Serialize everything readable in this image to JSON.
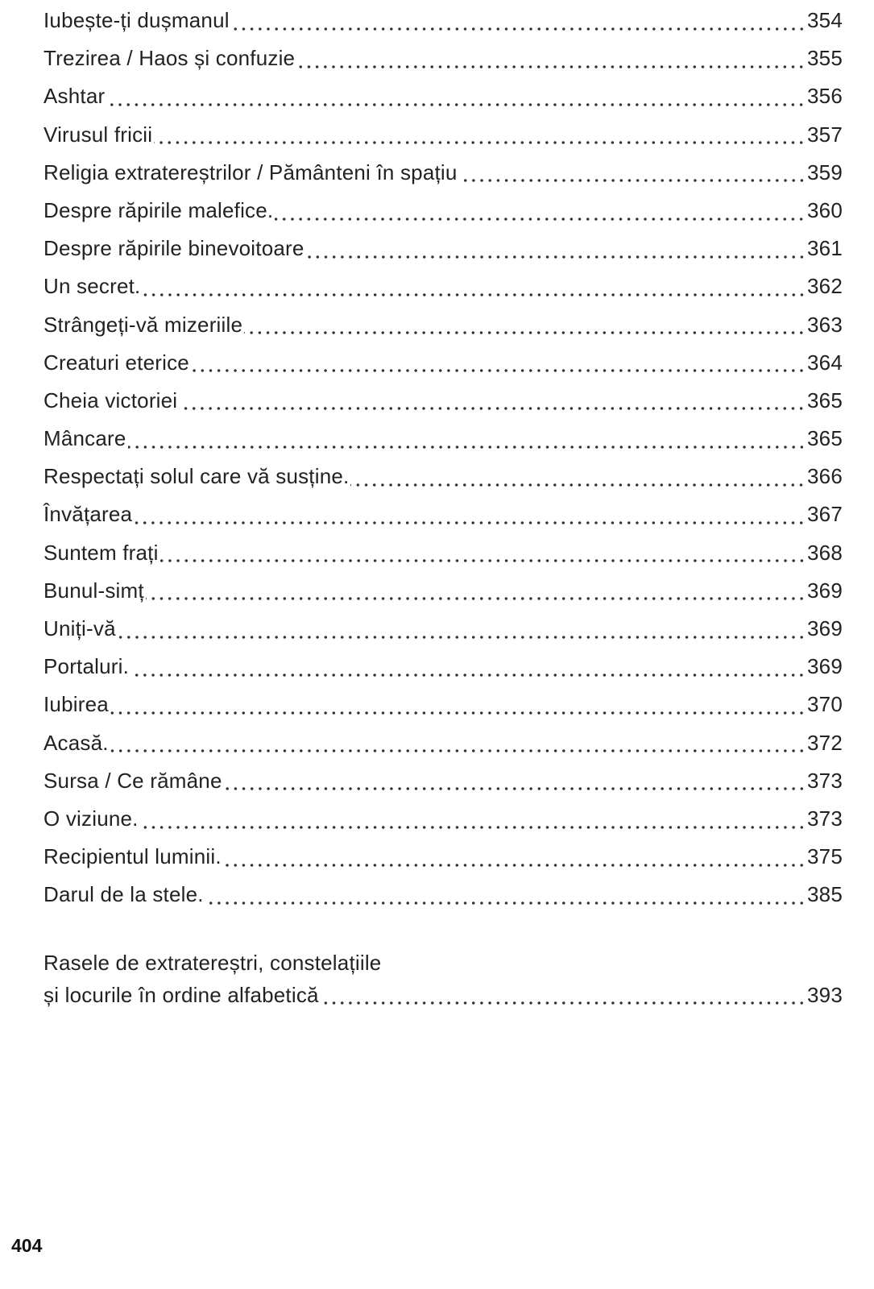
{
  "toc": {
    "entries": [
      {
        "title": [
          "Iubește-ți dușmanul"
        ],
        "page": "354"
      },
      {
        "title": [
          "Trezirea / Haos și confuzie"
        ],
        "page": "355"
      },
      {
        "title": [
          "Ashtar"
        ],
        "page": "356"
      },
      {
        "title": [
          "Virusul fricii"
        ],
        "page": "357"
      },
      {
        "title": [
          "Religia extratereștrilor / Pământeni în spațiu"
        ],
        "page": "359"
      },
      {
        "title": [
          "Despre răpirile malefice."
        ],
        "page": "360"
      },
      {
        "title": [
          "Despre răpirile binevoitoare"
        ],
        "page": "361"
      },
      {
        "title": [
          "Un secret."
        ],
        "page": "362"
      },
      {
        "title": [
          "Strângeți-vă mizeriile"
        ],
        "page": "363"
      },
      {
        "title": [
          "Creaturi eterice"
        ],
        "page": "364"
      },
      {
        "title": [
          "Cheia victoriei"
        ],
        "page": "365"
      },
      {
        "title": [
          "Mâncare"
        ],
        "page": "365"
      },
      {
        "title": [
          "Respectați solul care vă susține."
        ],
        "page": "366"
      },
      {
        "title": [
          "Învățarea"
        ],
        "page": "367"
      },
      {
        "title": [
          "Suntem frați"
        ],
        "page": "368"
      },
      {
        "title": [
          "Bunul-simț"
        ],
        "page": "369"
      },
      {
        "title": [
          "Uniți-vă"
        ],
        "page": "369"
      },
      {
        "title": [
          "Portaluri."
        ],
        "page": "369"
      },
      {
        "title": [
          "Iubirea"
        ],
        "page": "370"
      },
      {
        "title": [
          "Acasă."
        ],
        "page": "372"
      },
      {
        "title": [
          "Sursa / Ce rămâne"
        ],
        "page": "373"
      },
      {
        "title": [
          "O viziune."
        ],
        "page": "373"
      },
      {
        "title": [
          "Recipientul luminii."
        ],
        "page": "375"
      },
      {
        "title": [
          "Darul de la stele."
        ],
        "page": "385"
      },
      {
        "title": [
          "Rasele de extratereștri, constelațiile",
          "și locurile în ordine alfabetică"
        ],
        "page": "393"
      }
    ]
  },
  "page_number": "404"
}
